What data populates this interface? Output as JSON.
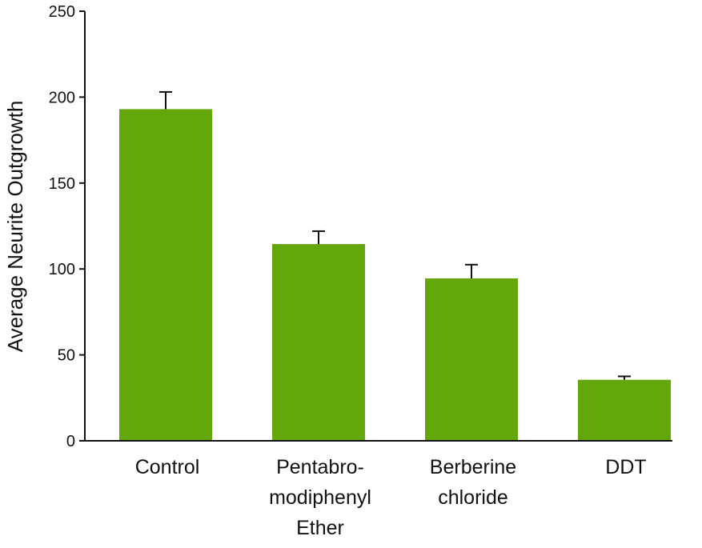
{
  "chart_data": {
    "type": "bar",
    "title": "",
    "xlabel": "",
    "ylabel": "Average Neurite Outgrowth",
    "ylim": [
      0,
      250
    ],
    "yticks": [
      0,
      50,
      100,
      150,
      200,
      250
    ],
    "grid": false,
    "categories": [
      [
        "Control"
      ],
      [
        "Pentabro-",
        "modiphenyl",
        "Ether"
      ],
      [
        "Berberine",
        "chloride"
      ],
      [
        "DDT"
      ]
    ],
    "category_names": [
      "Control",
      "Pentabromodiphenyl Ether",
      "Berberine chloride",
      "DDT"
    ],
    "values": [
      193,
      114.5,
      94.5,
      35.5
    ],
    "error_upper": [
      10,
      7.5,
      8,
      2
    ],
    "bar_color": "#64a70b",
    "axis_color": "#111111"
  }
}
